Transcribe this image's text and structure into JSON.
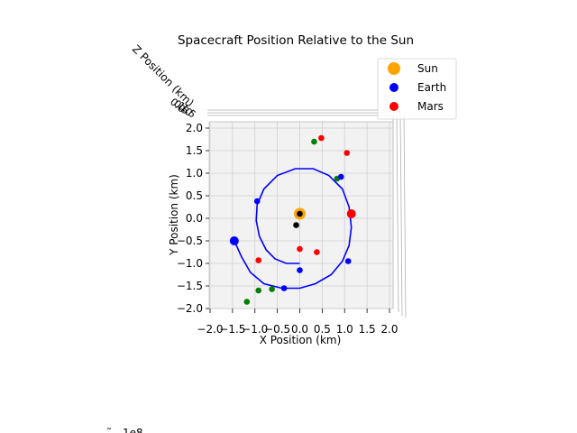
{
  "chart_data": {
    "type": "scatter",
    "title": "Spacecraft Position Relative to the Sun",
    "xlabel": "X Position (km)",
    "ylabel": "Y Position (km)",
    "zlabel": "Z Position (km)",
    "offset_text": "1e8",
    "xlim": [
      -2.0,
      2.0
    ],
    "ylim": [
      -2.0,
      2.0
    ],
    "x_ticks": [
      "−2.0",
      "−1.5",
      "−1.0",
      "−0.5",
      "0.0",
      "0.5",
      "1.0",
      "1.5",
      "2.0"
    ],
    "y_ticks": [
      "−2.0",
      "−1.5",
      "−1.0",
      "−0.5",
      "0.0",
      "0.5",
      "1.0",
      "1.5",
      "2.0"
    ],
    "grid": true,
    "legend_position": "top-right",
    "legend": [
      {
        "label": "Sun",
        "color": "#FFA500"
      },
      {
        "label": "Earth",
        "color": "#0000FF"
      },
      {
        "label": "Mars",
        "color": "#FF0000"
      }
    ],
    "sun": {
      "x": 0.0,
      "y": 0.1
    },
    "earth_orbit": {
      "color": "#0000FF",
      "points": [
        [
          -1.46,
          -0.5
        ],
        [
          -1.3,
          -0.85
        ],
        [
          -1.1,
          -1.2
        ],
        [
          -0.8,
          -1.45
        ],
        [
          -0.4,
          -1.55
        ],
        [
          0.0,
          -1.55
        ],
        [
          0.35,
          -1.45
        ],
        [
          0.7,
          -1.25
        ],
        [
          0.95,
          -0.95
        ],
        [
          1.1,
          -0.6
        ],
        [
          1.15,
          -0.2
        ],
        [
          1.1,
          0.25
        ],
        [
          0.95,
          0.65
        ],
        [
          0.65,
          0.95
        ],
        [
          0.3,
          1.1
        ],
        [
          -0.1,
          1.1
        ],
        [
          -0.5,
          0.95
        ],
        [
          -0.8,
          0.65
        ],
        [
          -0.95,
          0.3
        ],
        [
          -0.97,
          -0.05
        ],
        [
          -0.9,
          -0.4
        ],
        [
          -0.75,
          -0.7
        ],
        [
          -0.55,
          -0.9
        ],
        [
          -0.3,
          -1.0
        ],
        [
          0.0,
          -1.0
        ]
      ]
    },
    "earth_point": {
      "x": -1.46,
      "y": -0.5
    },
    "mars_point": {
      "x": 1.15,
      "y": 0.1
    },
    "spacecraft_points": [
      {
        "x": 0.0,
        "y": 0.1,
        "color": "#000000"
      },
      {
        "x": -0.08,
        "y": -0.15,
        "color": "#000000"
      }
    ],
    "trajectory_points": [
      {
        "x": 0.32,
        "y": 1.7,
        "color": "#008000"
      },
      {
        "x": 0.48,
        "y": 1.78,
        "color": "#FF0000"
      },
      {
        "x": 1.05,
        "y": 1.45,
        "color": "#FF0000"
      },
      {
        "x": 0.83,
        "y": 0.88,
        "color": "#008000"
      },
      {
        "x": 0.92,
        "y": 0.92,
        "color": "#0000FF"
      },
      {
        "x": -0.95,
        "y": 0.38,
        "color": "#0000FF"
      },
      {
        "x": 0.0,
        "y": -0.68,
        "color": "#FF0000"
      },
      {
        "x": 0.38,
        "y": -0.75,
        "color": "#FF0000"
      },
      {
        "x": -0.92,
        "y": -0.93,
        "color": "#FF0000"
      },
      {
        "x": 1.08,
        "y": -0.95,
        "color": "#0000FF"
      },
      {
        "x": 0.0,
        "y": -1.15,
        "color": "#0000FF"
      },
      {
        "x": -0.35,
        "y": -1.55,
        "color": "#0000FF"
      },
      {
        "x": -0.62,
        "y": -1.57,
        "color": "#008000"
      },
      {
        "x": -0.92,
        "y": -1.6,
        "color": "#008000"
      },
      {
        "x": -1.18,
        "y": -1.85,
        "color": "#008000"
      }
    ]
  }
}
